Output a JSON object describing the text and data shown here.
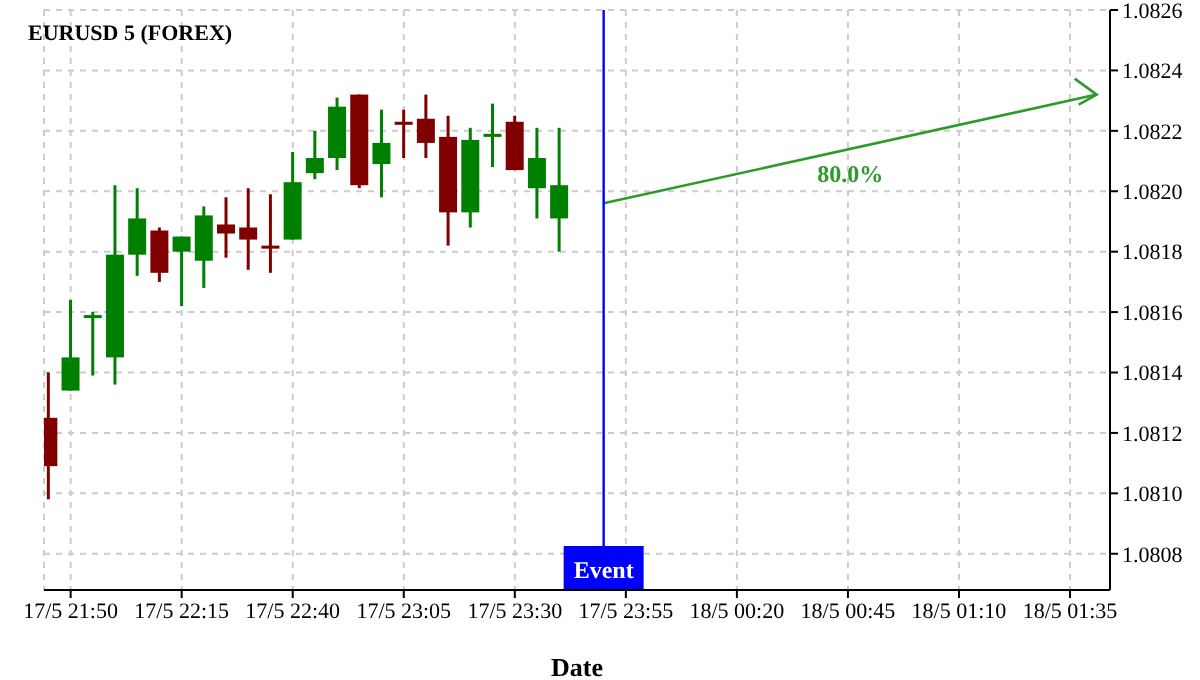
{
  "chart_data": {
    "type": "candlestick",
    "title": "EURUSD 5 (FOREX)",
    "xlabel": "Date",
    "x": [
      "--05-17T21:45",
      "--05-17T21:50",
      "--05-17T21:55",
      "--05-17T22:00",
      "--05-17T22:05",
      "--05-17T22:10",
      "--05-17T22:15",
      "--05-17T22:20",
      "--05-17T22:25",
      "--05-17T22:30",
      "--05-17T22:35",
      "--05-17T22:40",
      "--05-17T22:45",
      "--05-17T22:50",
      "--05-17T22:55",
      "--05-17T23:00",
      "--05-17T23:05",
      "--05-17T23:10",
      "--05-17T23:15",
      "--05-17T23:20",
      "--05-17T23:25",
      "--05-17T23:30",
      "--05-17T23:35",
      "--05-17T23:40"
    ],
    "ohlc": [
      [
        1.08125,
        1.0814,
        1.08098,
        1.08109
      ],
      [
        1.08134,
        1.08164,
        1.08134,
        1.08145
      ],
      [
        1.08158,
        1.0816,
        1.08139,
        1.08159
      ],
      [
        1.08145,
        1.08202,
        1.08136,
        1.08179
      ],
      [
        1.08179,
        1.08201,
        1.08172,
        1.08191
      ],
      [
        1.08187,
        1.08188,
        1.0817,
        1.08173
      ],
      [
        1.0818,
        1.08185,
        1.08162,
        1.08185
      ],
      [
        1.08177,
        1.08195,
        1.08168,
        1.08192
      ],
      [
        1.08189,
        1.08198,
        1.08178,
        1.08186
      ],
      [
        1.08188,
        1.08201,
        1.08174,
        1.08184
      ],
      [
        1.08182,
        1.08199,
        1.08173,
        1.08181
      ],
      [
        1.08184,
        1.08213,
        1.08184,
        1.08203
      ],
      [
        1.08206,
        1.0822,
        1.08204,
        1.08211
      ],
      [
        1.08211,
        1.08231,
        1.08207,
        1.08228
      ],
      [
        1.08232,
        1.08232,
        1.08201,
        1.08202
      ],
      [
        1.08209,
        1.08227,
        1.08198,
        1.08216
      ],
      [
        1.08223,
        1.08227,
        1.08211,
        1.08222
      ],
      [
        1.08224,
        1.08232,
        1.08211,
        1.08216
      ],
      [
        1.08218,
        1.08225,
        1.08182,
        1.08193
      ],
      [
        1.08193,
        1.08221,
        1.08188,
        1.08217
      ],
      [
        1.08218,
        1.08229,
        1.08208,
        1.08219
      ],
      [
        1.08223,
        1.08225,
        1.08207,
        1.08207
      ],
      [
        1.08201,
        1.08221,
        1.08191,
        1.08211
      ],
      [
        1.08191,
        1.08221,
        1.0818,
        1.08202
      ]
    ],
    "colors": [
      "#800000",
      "#008000",
      "#008000",
      "#008000",
      "#008000",
      "#800000",
      "#008000",
      "#008000",
      "#800000",
      "#800000",
      "#800000",
      "#008000",
      "#008000",
      "#008000",
      "#800000",
      "#008000",
      "#800000",
      "#800000",
      "#800000",
      "#008000",
      "#008000",
      "#800000",
      "#008000",
      "#008000"
    ],
    "series": [
      {
        "type": "line",
        "color": "#2e9a2e",
        "x": [
          "--05-17T23:50",
          "--05-18T01:41"
        ],
        "values": [
          1.08196,
          1.08232
        ]
      }
    ],
    "ref_lines": [
      {
        "axis": "x",
        "value": "--05-17T23:50",
        "label": "Event",
        "color": "#0000ff"
      }
    ],
    "annotations": [
      "80.0%"
    ],
    "xlim": [
      "--05-17T21:44",
      "--05-18T01:44"
    ],
    "xticks": [
      {
        "value": "--05-17T21:50",
        "label": "17/5 21:50"
      },
      {
        "value": "--05-17T22:15",
        "label": "17/5 22:15"
      },
      {
        "value": "--05-17T22:40",
        "label": "17/5 22:40"
      },
      {
        "value": "--05-17T23:05",
        "label": "17/5 23:05"
      },
      {
        "value": "--05-17T23:30",
        "label": "17/5 23:30"
      },
      {
        "value": "--05-17T23:55",
        "label": "17/5 23:55"
      },
      {
        "value": "--05-18T00:20",
        "label": "18/5 00:20"
      },
      {
        "value": "--05-18T00:45",
        "label": "18/5 00:45"
      },
      {
        "value": "--05-18T01:10",
        "label": "18/5 01:10"
      },
      {
        "value": "--05-18T01:35",
        "label": "18/5 01:35"
      }
    ],
    "ylim": [
      1.08068,
      1.0826
    ],
    "yticks": [
      1.0808,
      {
        "value": 1.081,
        "label": "1.0810"
      },
      1.0812,
      1.0814,
      1.0816,
      1.0818,
      {
        "value": 1.082,
        "label": "1.0820"
      },
      1.0822,
      1.0824,
      1.0826
    ],
    "grid": true
  }
}
